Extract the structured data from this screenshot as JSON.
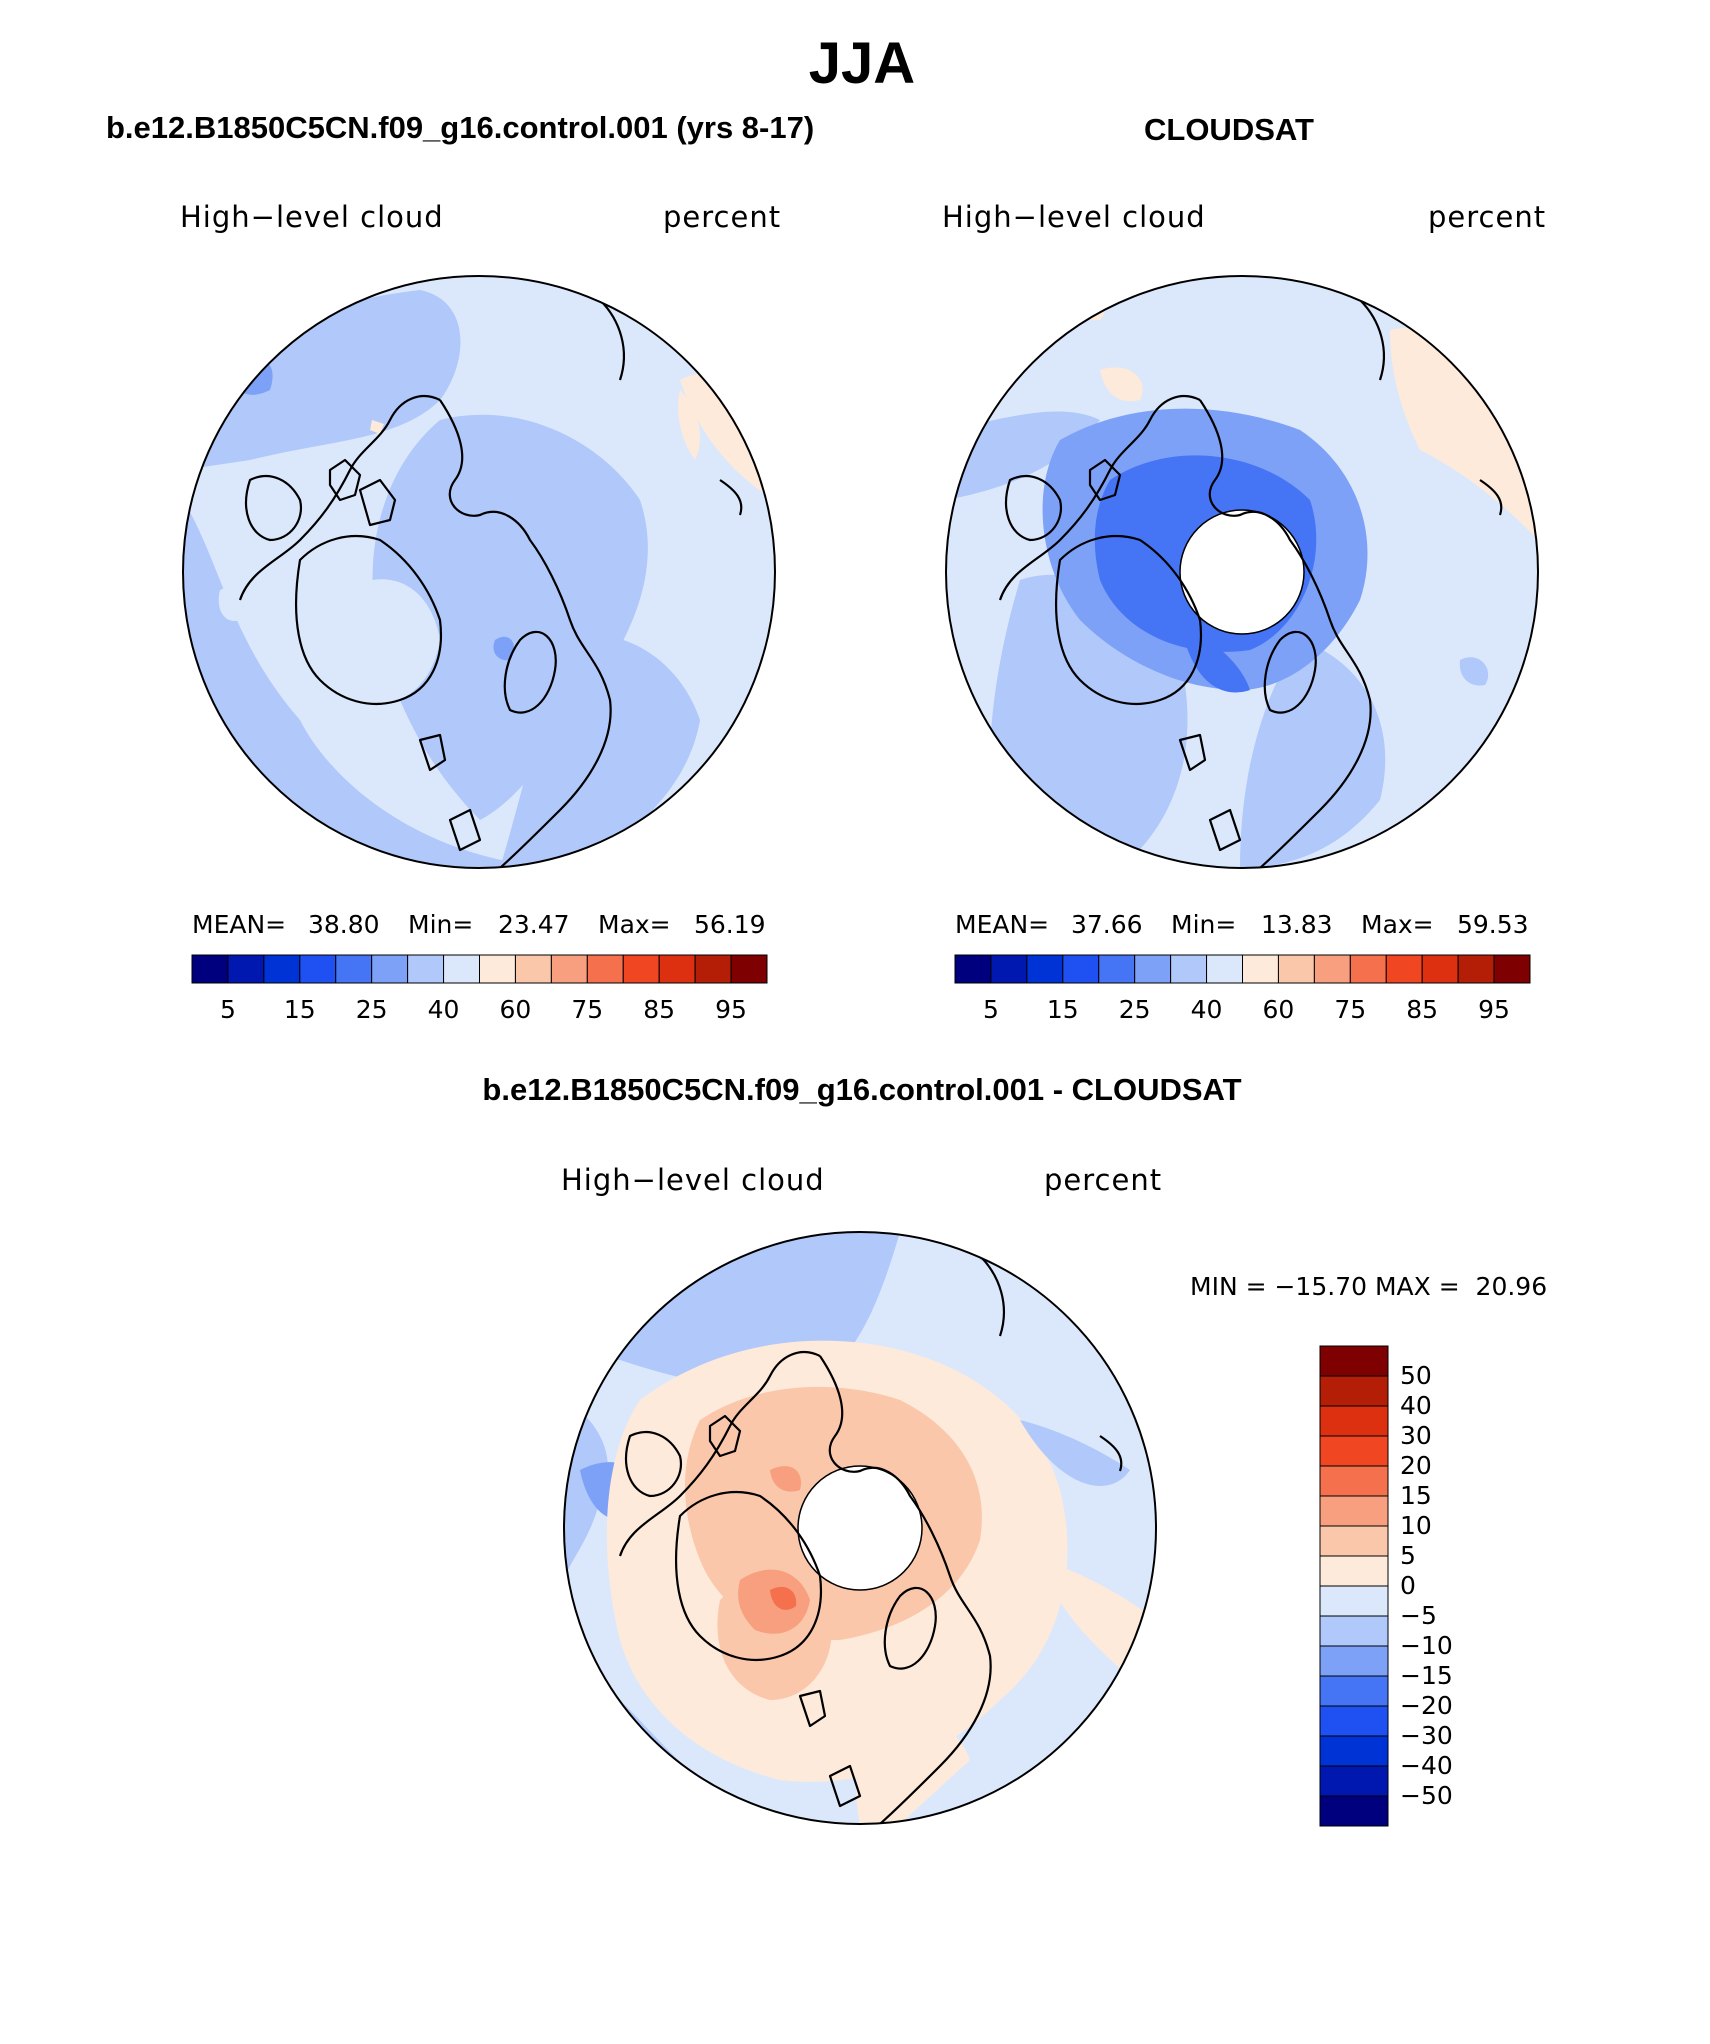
{
  "title": "JJA",
  "panels": [
    {
      "id": "model",
      "title": "b.e12.B1850C5CN.f09_g16.control.001 (yrs 8-17)",
      "variable": "High−level cloud",
      "units": "percent",
      "stats": {
        "mean_label": "MEAN=",
        "mean": "38.80",
        "min_label": "Min=",
        "min": "23.47",
        "max_label": "Max=",
        "max": "56.19"
      },
      "colorbar_labels": [
        "5",
        "15",
        "25",
        "40",
        "60",
        "75",
        "85",
        "95"
      ]
    },
    {
      "id": "obs",
      "title": "CLOUDSAT",
      "variable": "High−level cloud",
      "units": "percent",
      "stats": {
        "mean_label": "MEAN=",
        "mean": "37.66",
        "min_label": "Min=",
        "min": "13.83",
        "max_label": "Max=",
        "max": "59.53"
      },
      "colorbar_labels": [
        "5",
        "15",
        "25",
        "40",
        "60",
        "75",
        "85",
        "95"
      ]
    }
  ],
  "difference": {
    "title": "b.e12.B1850C5CN.f09_g16.control.001 - CLOUDSAT",
    "variable": "High−level cloud",
    "units": "percent",
    "minmax_text": "MIN = −15.70 MAX =  20.96",
    "colorbar_labels": [
      "50",
      "40",
      "30",
      "20",
      "15",
      "10",
      "5",
      "0",
      "−5",
      "−10",
      "−15",
      "−20",
      "−30",
      "−40",
      "−50"
    ]
  },
  "colors": {
    "abs_palette": [
      "#00007f",
      "#0018b0",
      "#0033d6",
      "#1f50f2",
      "#4575f5",
      "#7da1f7",
      "#b0c8fa",
      "#dbe8fc",
      "#fdeadb",
      "#fbc7ab",
      "#f79f7e",
      "#f5704c",
      "#f04622",
      "#dc3010",
      "#b51e06",
      "#7f0000"
    ],
    "diff_palette": [
      "#7f0000",
      "#b51e06",
      "#dc3010",
      "#f04622",
      "#f5704c",
      "#f79f7e",
      "#fbc7ab",
      "#fdeadb",
      "#dbe8fc",
      "#b0c8fa",
      "#7da1f7",
      "#4575f5",
      "#1f50f2",
      "#0033d6",
      "#0018b0",
      "#00007f"
    ],
    "coastline": "#000000"
  }
}
